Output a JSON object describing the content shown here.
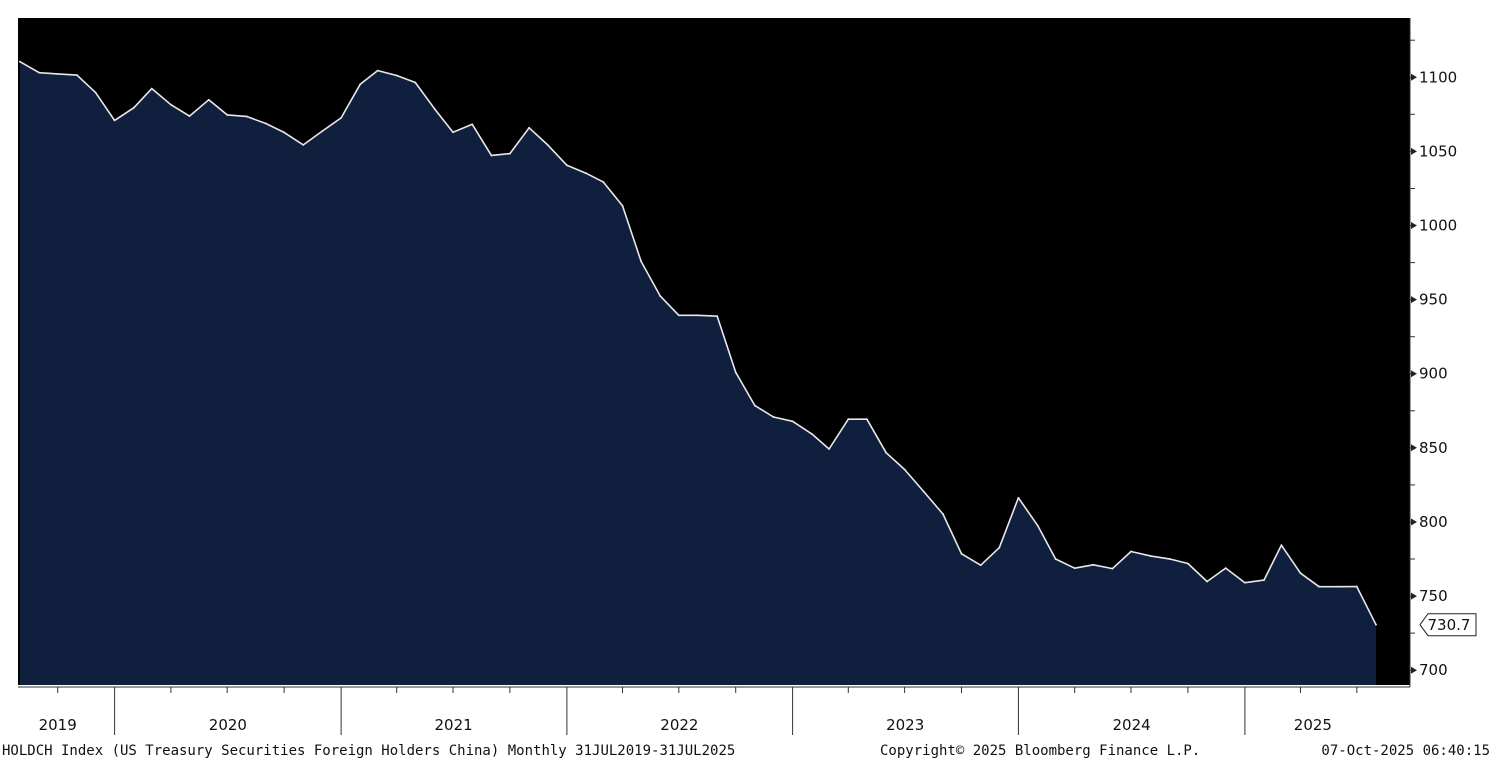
{
  "chart_data": {
    "type": "area",
    "title": "",
    "xlabel": "",
    "ylabel": "",
    "ylim": [
      690,
      1140
    ],
    "y_ticks": [
      "700",
      "750",
      "800",
      "850",
      "900",
      "950",
      "1000",
      "1050",
      "1100"
    ],
    "x_range": [
      "2019-07-31",
      "2025-07-31"
    ],
    "year_labels": [
      {
        "label": "2019",
        "center": "2019-09-30"
      },
      {
        "label": "2020",
        "center": "2020-07-01"
      },
      {
        "label": "2021",
        "center": "2021-07-01"
      },
      {
        "label": "2022",
        "center": "2022-07-01"
      },
      {
        "label": "2023",
        "center": "2023-07-01"
      },
      {
        "label": "2024",
        "center": "2024-07-01"
      },
      {
        "label": "2025",
        "center": "2025-04-20"
      }
    ],
    "grid": false,
    "legend": "none",
    "last_value_label": "730.7",
    "colors": {
      "plot_background": "#000000",
      "area_fill": "#0f1f3d",
      "line": "#e8e8e8"
    },
    "series": [
      {
        "x": [
          "2019-07-31",
          "2019-08-31",
          "2019-09-30",
          "2019-10-31",
          "2019-11-30",
          "2019-12-31",
          "2020-01-31",
          "2020-02-29",
          "2020-03-31",
          "2020-04-30",
          "2020-05-31",
          "2020-06-30",
          "2020-07-31",
          "2020-08-31",
          "2020-09-30",
          "2020-10-31",
          "2020-11-30",
          "2020-12-31",
          "2021-01-31",
          "2021-02-28",
          "2021-03-31",
          "2021-04-30",
          "2021-05-31",
          "2021-06-30",
          "2021-07-31",
          "2021-08-31",
          "2021-09-30",
          "2021-10-31",
          "2021-11-30",
          "2021-12-31",
          "2022-01-31",
          "2022-02-28",
          "2022-03-31",
          "2022-04-30",
          "2022-05-31",
          "2022-06-30",
          "2022-07-31",
          "2022-08-31",
          "2022-09-30",
          "2022-10-31",
          "2022-11-30",
          "2022-12-31",
          "2023-01-31",
          "2023-02-28",
          "2023-03-31",
          "2023-04-30",
          "2023-05-31",
          "2023-06-30",
          "2023-07-31",
          "2023-08-31",
          "2023-09-30",
          "2023-10-31",
          "2023-11-30",
          "2023-12-31",
          "2024-01-31",
          "2024-02-29",
          "2024-03-31",
          "2024-04-30",
          "2024-05-31",
          "2024-06-30",
          "2024-07-31",
          "2024-08-31",
          "2024-09-30",
          "2024-10-31",
          "2024-11-30",
          "2024-12-31",
          "2025-01-31",
          "2025-02-28",
          "2025-03-31",
          "2025-04-30",
          "2025-05-31",
          "2025-06-30",
          "2025-07-31"
        ],
        "values": [
          1110.5,
          1103.1,
          1102.3,
          1101.5,
          1089.8,
          1070.9,
          1079.4,
          1092.4,
          1081.5,
          1073.8,
          1084.8,
          1074.6,
          1073.6,
          1068.9,
          1062.8,
          1054.4,
          1063.5,
          1072.6,
          1095.3,
          1104.5,
          1101.2,
          1096.5,
          1078.8,
          1062.9,
          1068.3,
          1047.3,
          1048.5,
          1065.9,
          1054.4,
          1040.6,
          1035.3,
          1029.3,
          1013.3,
          975.8,
          952.4,
          939.4,
          939.4,
          938.8,
          901.0,
          878.5,
          870.8,
          867.9,
          859.4,
          849.2,
          869.3,
          869.3,
          846.7,
          835.4,
          820.5,
          805.3,
          778.5,
          770.8,
          782.6,
          816.3,
          797.7,
          775.0,
          768.8,
          771.1,
          768.5,
          780.1,
          777.1,
          775.1,
          772.0,
          759.8,
          768.9,
          759.0,
          760.8,
          784.3,
          765.4,
          756.3,
          756.3,
          756.4,
          730.7
        ]
      }
    ]
  },
  "footer": {
    "description": "HOLDCH Index (US Treasury Securities Foreign Holders China) Monthly 31JUL2019-31JUL2025",
    "copyright": "Copyright© 2025 Bloomberg Finance L.P.",
    "timestamp": "07-Oct-2025 06:40:15"
  }
}
